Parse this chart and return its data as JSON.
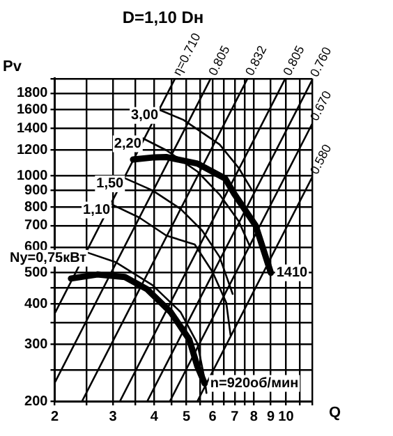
{
  "chart_data": {
    "type": "line",
    "title": "D=1,10 Dн",
    "xlabel": "Q",
    "ylabel": "Pv",
    "log": "xy",
    "grid": true,
    "marker": "none",
    "xlim": [
      2,
      12
    ],
    "ylim": [
      200,
      2000
    ],
    "xticks": [
      2,
      {
        "value": 2.5,
        "label": null
      },
      3,
      {
        "value": 3.5,
        "label": null
      },
      4,
      {
        "value": 4.5,
        "label": null
      },
      5,
      {
        "value": 5.5,
        "label": null
      },
      6,
      {
        "value": 6.5,
        "label": null
      },
      7,
      {
        "value": 7.5,
        "label": null
      },
      8,
      9,
      10,
      {
        "value": 11,
        "label": null
      },
      {
        "value": 12,
        "label": null
      }
    ],
    "yticks": [
      200,
      {
        "value": 250,
        "label": null
      },
      300,
      {
        "value": 350,
        "label": null
      },
      400,
      {
        "value": 450,
        "label": null
      },
      500,
      600,
      700,
      800,
      900,
      1000,
      1200,
      1400,
      1600,
      1800,
      {
        "value": 2000,
        "label": null
      }
    ],
    "series": [
      {
        "color": "#000000",
        "x": [
          3.45,
          4.0,
          4.35,
          5.4,
          6.55,
          7.0,
          8.1,
          9.0
        ],
        "values": [
          1122,
          1140,
          1142,
          1090,
          980,
          874,
          700,
          500
        ]
      },
      {
        "color": "#000000",
        "x": [
          2.24,
          2.69,
          3.26,
          3.8,
          4.48,
          5.1,
          5.4,
          5.68
        ],
        "values": [
          480,
          494,
          485,
          445,
          378,
          311,
          256,
          227
        ]
      },
      {
        "name": "3,00",
        "color": "#000000",
        "x": [
          4.15,
          4.9,
          6.3,
          7.2,
          7.9
        ],
        "values": [
          1600,
          1489,
          1250,
          1056,
          900
        ]
      },
      {
        "name": "2,20",
        "color": "#000000",
        "x": [
          3.69,
          4.35,
          5.4,
          6.3,
          7.2,
          7.8
        ],
        "values": [
          1306,
          1199,
          1030,
          874,
          722,
          600
        ]
      },
      {
        "name": "1,50",
        "color": "#000000",
        "x": [
          3.26,
          3.95,
          4.8,
          5.58,
          6.3,
          6.9
        ],
        "values": [
          982,
          900,
          789,
          676,
          560,
          430
        ]
      },
      {
        "name": "1,10",
        "color": "#000000",
        "x": [
          2.97,
          3.6,
          4.35,
          5.3,
          6.0,
          6.6,
          6.8
        ],
        "values": [
          815,
          742,
          652,
          612,
          503,
          404,
          320
        ]
      },
      {
        "name": "Ny=0,75кВт",
        "color": "#000000",
        "x": [
          2.52,
          3.05,
          3.95,
          4.8,
          5.4,
          5.68,
          5.75
        ],
        "values": [
          577,
          540,
          458,
          378,
          302,
          233,
          212
        ]
      },
      {
        "name": "η=0.710",
        "color": "#000000",
        "x": [
          2,
          4.62
        ],
        "values": [
          374,
          2000
        ]
      },
      {
        "name": "0.805",
        "color": "#000000",
        "x": [
          2,
          5.92
        ],
        "values": [
          228,
          2000
        ]
      },
      {
        "name": "0.832",
        "color": "#000000",
        "x": [
          2.42,
          7.65
        ],
        "values": [
          200,
          2000
        ]
      },
      {
        "name": "0.805",
        "color": "#000000",
        "x": [
          3.15,
          9.95
        ],
        "values": [
          200,
          2000
        ]
      },
      {
        "name": "0.760",
        "color": "#000000",
        "x": [
          3.81,
          12
        ],
        "values": [
          200,
          1980
        ]
      },
      {
        "name": "0.670",
        "color": "#000000",
        "x": [
          4.46,
          12
        ],
        "values": [
          200,
          1448
        ]
      },
      {
        "name": "0.580",
        "color": "#000000",
        "x": [
          5.4,
          12
        ],
        "values": [
          200,
          989
        ]
      }
    ],
    "annotations": [
      {
        "text": "1410",
        "x": 9,
        "y": 500
      },
      {
        "text": "n=920об/мин",
        "x": 5.68,
        "y": 227
      }
    ]
  }
}
